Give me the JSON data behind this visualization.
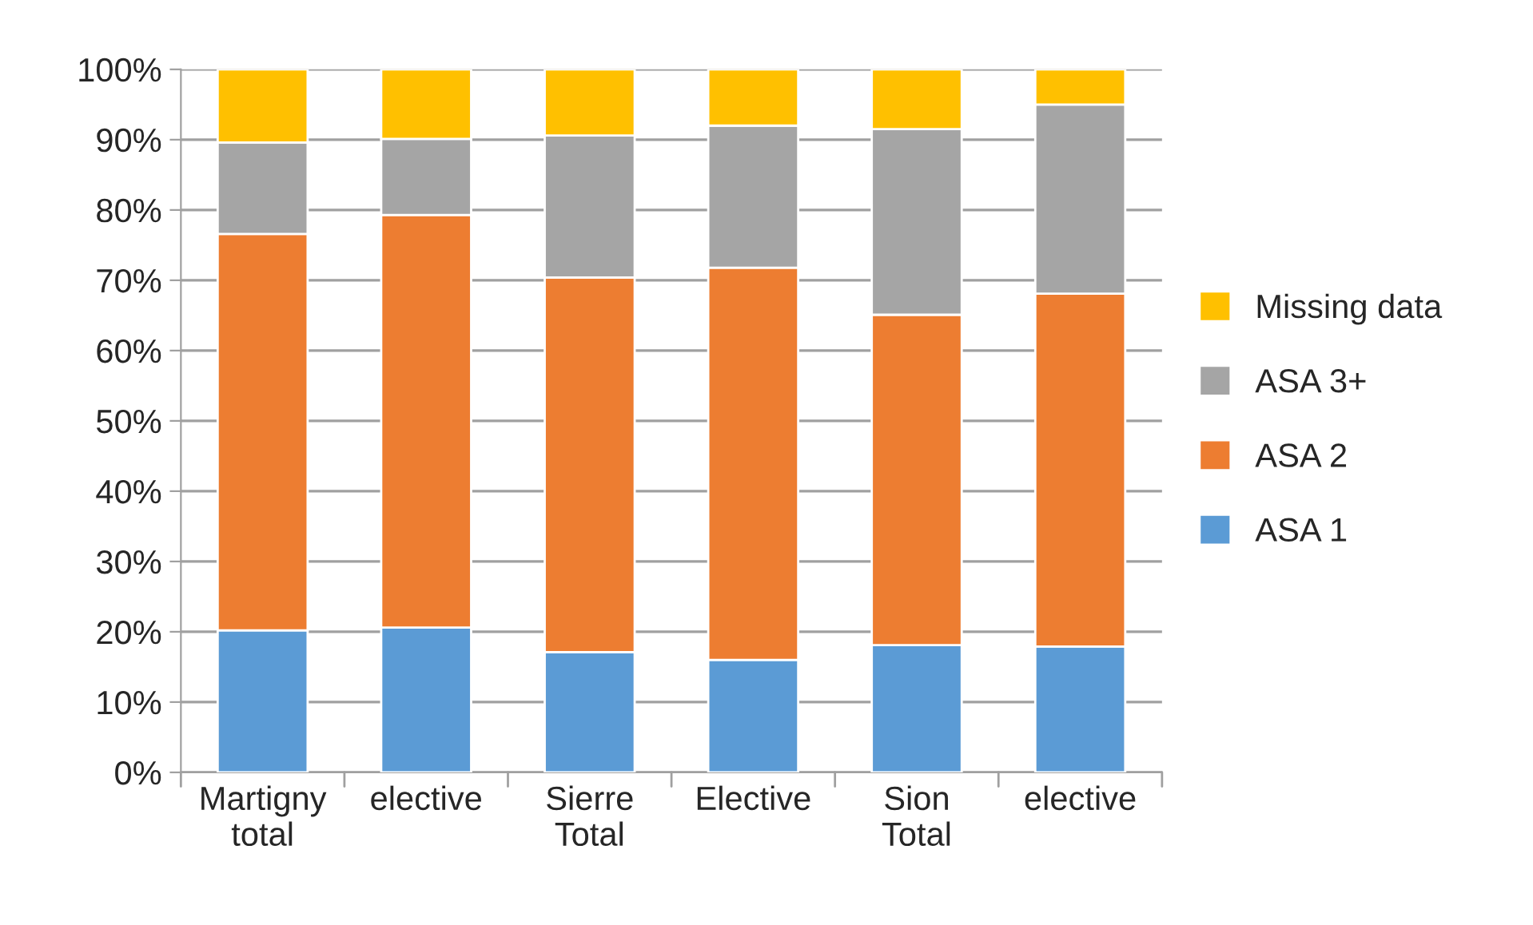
{
  "chart_data": {
    "type": "bar",
    "stacked": true,
    "categories": [
      "Martigny\ntotal",
      "elective",
      "Sierre\nTotal",
      "Elective",
      "Sion\nTotal",
      "elective"
    ],
    "series": [
      {
        "name": "ASA 1",
        "color": "#5b9bd5",
        "values": [
          20.2,
          20.6,
          17.1,
          16.0,
          18.1,
          17.9
        ]
      },
      {
        "name": "ASA 2",
        "color": "#ed7d31",
        "values": [
          56.4,
          58.7,
          53.3,
          55.8,
          47.0,
          50.2
        ]
      },
      {
        "name": "ASA 3+",
        "color": "#a5a5a5",
        "values": [
          13.0,
          10.8,
          20.2,
          20.2,
          26.4,
          26.9
        ]
      },
      {
        "name": "Missing data",
        "color": "#ffc000",
        "values": [
          10.4,
          9.9,
          9.4,
          8.0,
          8.5,
          5.0
        ]
      }
    ],
    "ylim": [
      0,
      100
    ],
    "yticks": [
      {
        "value": 0,
        "label": "0%"
      },
      {
        "value": 10,
        "label": "10%"
      },
      {
        "value": 20,
        "label": "20%"
      },
      {
        "value": 30,
        "label": "30%"
      },
      {
        "value": 40,
        "label": "40%"
      },
      {
        "value": 50,
        "label": "50%"
      },
      {
        "value": 60,
        "label": "60%"
      },
      {
        "value": 70,
        "label": "70%"
      },
      {
        "value": 80,
        "label": "80%"
      },
      {
        "value": 90,
        "label": "90%"
      },
      {
        "value": 100,
        "label": "100%"
      }
    ],
    "grid": "y",
    "legend": "right"
  }
}
